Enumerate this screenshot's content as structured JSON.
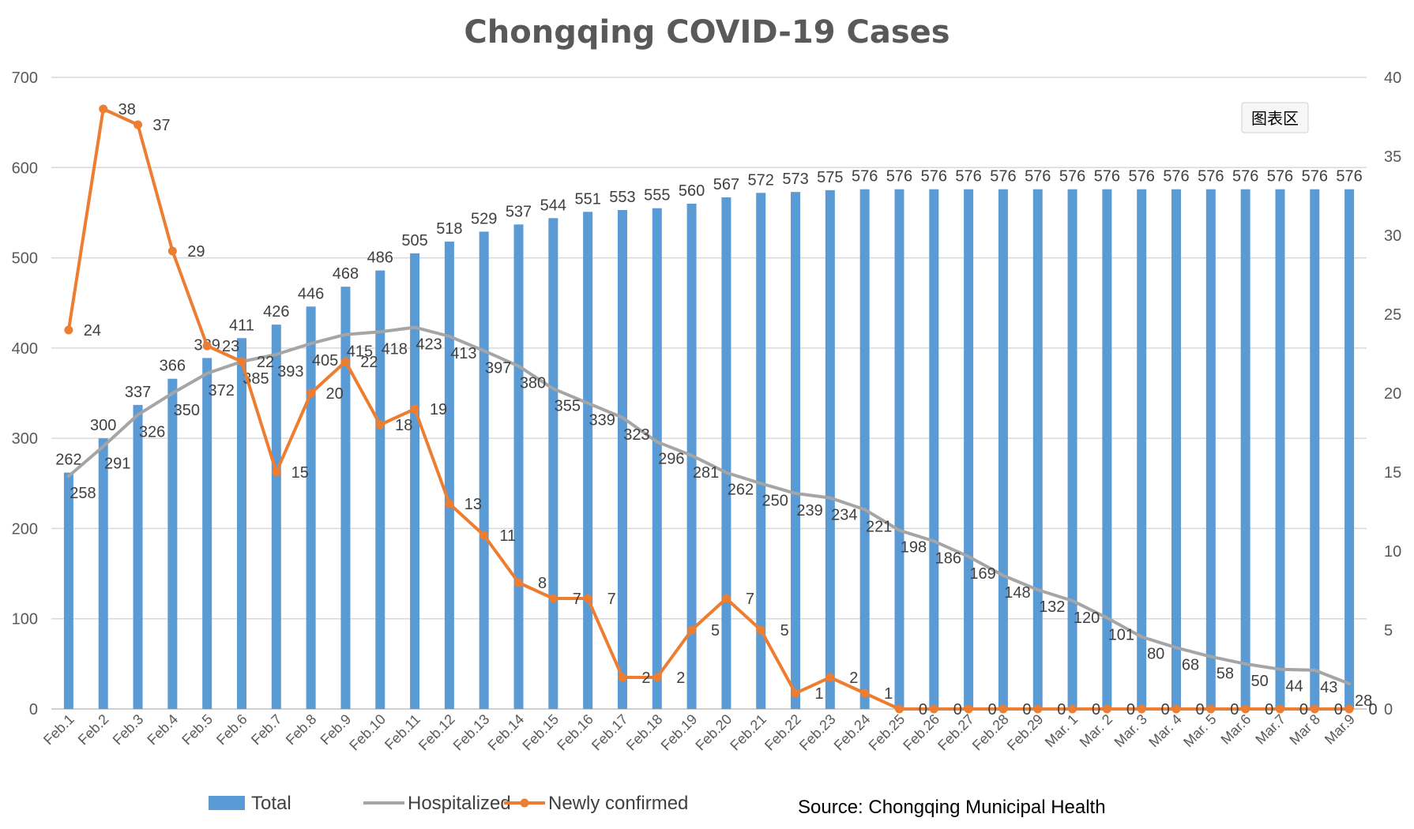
{
  "chart_data": {
    "type": "bar",
    "title": "Chongqing COVID-19 Cases",
    "source": "Source: Chongqing Municipal Health",
    "tooltip": "图表区",
    "categories": [
      "Feb.1",
      "Feb.2",
      "Feb.3",
      "Feb.4",
      "Feb.5",
      "Feb.6",
      "Feb.7",
      "Feb.8",
      "Feb.9",
      "Feb.10",
      "Feb.11",
      "Feb.12",
      "Feb.13",
      "Feb.14",
      "Feb.15",
      "Feb.16",
      "Feb.17",
      "Feb.18",
      "Feb.19",
      "Feb.20",
      "Feb.21",
      "Feb.22",
      "Feb.23",
      "Feb.24",
      "Feb.25",
      "Feb.26",
      "Feb.27",
      "Feb.28",
      "Feb.29",
      "Mar. 1",
      "Mar. 2",
      "Mar. 3",
      "Mar. 4",
      "Mar. 5",
      "Mar.6",
      "Mar.7",
      "Mar 8",
      "Mar.9"
    ],
    "series": [
      {
        "name": "Total",
        "type": "bar",
        "axis": "left",
        "color": "#5b9bd5",
        "values": [
          262,
          300,
          337,
          366,
          389,
          411,
          426,
          446,
          468,
          486,
          505,
          518,
          529,
          537,
          544,
          551,
          553,
          555,
          560,
          567,
          572,
          573,
          575,
          576,
          576,
          576,
          576,
          576,
          576,
          576,
          576,
          576,
          576,
          576,
          576,
          576,
          576,
          576
        ]
      },
      {
        "name": "Hospitalized",
        "type": "line",
        "axis": "left",
        "color": "#a5a5a5",
        "values": [
          258,
          291,
          326,
          350,
          372,
          385,
          393,
          405,
          415,
          418,
          423,
          413,
          397,
          380,
          355,
          339,
          323,
          296,
          281,
          262,
          250,
          239,
          234,
          221,
          198,
          186,
          169,
          148,
          132,
          120,
          101,
          80,
          68,
          58,
          50,
          44,
          43,
          28
        ]
      },
      {
        "name": "Newly confirmed",
        "type": "line",
        "axis": "right",
        "color": "#ed7d31",
        "values": [
          24,
          38,
          37,
          29,
          23,
          22,
          15,
          20,
          22,
          18,
          19,
          13,
          11,
          8,
          7,
          7,
          2,
          2,
          5,
          7,
          5,
          1,
          2,
          1,
          0,
          0,
          0,
          0,
          0,
          0,
          0,
          0,
          0,
          0,
          0,
          0,
          0,
          0
        ]
      }
    ],
    "ylim_left": [
      0,
      700
    ],
    "yticks_left": [
      0,
      100,
      200,
      300,
      400,
      500,
      600,
      700
    ],
    "ylim_right": [
      0,
      40
    ],
    "yticks_right": [
      0,
      5,
      10,
      15,
      20,
      25,
      30,
      35,
      40
    ],
    "grid": true,
    "legend": "bottom"
  }
}
